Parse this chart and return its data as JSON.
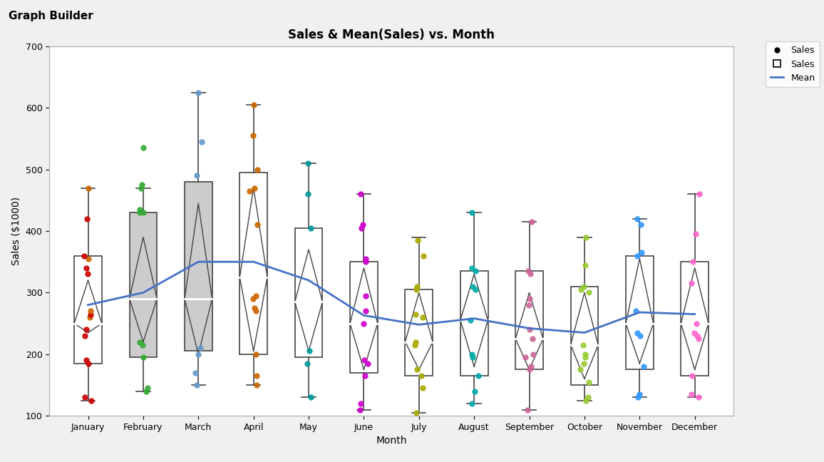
{
  "title": "Sales & Mean(Sales) vs. Month",
  "xlabel": "Month",
  "ylabel": "Sales ($1000)",
  "ylim": [
    100,
    700
  ],
  "yticks": [
    100,
    200,
    300,
    400,
    500,
    600,
    700
  ],
  "months": [
    "January",
    "February",
    "March",
    "April",
    "May",
    "June",
    "July",
    "August",
    "September",
    "October",
    "November",
    "December"
  ],
  "box_data": {
    "January": {
      "q1": 185,
      "median": 250,
      "q3": 360,
      "whisker_low": 125,
      "whisker_high": 470,
      "mean": 280,
      "ci_low": 235,
      "ci_high": 320
    },
    "February": {
      "q1": 195,
      "median": 290,
      "q3": 430,
      "whisker_low": 140,
      "whisker_high": 470,
      "mean": 300,
      "ci_low": 220,
      "ci_high": 390
    },
    "March": {
      "q1": 205,
      "median": 290,
      "q3": 480,
      "whisker_low": 150,
      "whisker_high": 625,
      "mean": 350,
      "ci_low": 200,
      "ci_high": 445
    },
    "April": {
      "q1": 200,
      "median": 325,
      "q3": 495,
      "whisker_low": 150,
      "whisker_high": 605,
      "mean": 350,
      "ci_low": 205,
      "ci_high": 470
    },
    "May": {
      "q1": 195,
      "median": 285,
      "q3": 405,
      "whisker_low": 130,
      "whisker_high": 510,
      "mean": 320,
      "ci_low": 205,
      "ci_high": 370
    },
    "June": {
      "q1": 170,
      "median": 250,
      "q3": 350,
      "whisker_low": 110,
      "whisker_high": 460,
      "mean": 263,
      "ci_low": 175,
      "ci_high": 340
    },
    "July": {
      "q1": 165,
      "median": 220,
      "q3": 305,
      "whisker_low": 105,
      "whisker_high": 390,
      "mean": 248,
      "ci_low": 175,
      "ci_high": 300
    },
    "August": {
      "q1": 165,
      "median": 255,
      "q3": 335,
      "whisker_low": 120,
      "whisker_high": 430,
      "mean": 258,
      "ci_low": 180,
      "ci_high": 330
    },
    "September": {
      "q1": 175,
      "median": 225,
      "q3": 335,
      "whisker_low": 110,
      "whisker_high": 415,
      "mean": 242,
      "ci_low": 175,
      "ci_high": 300
    },
    "October": {
      "q1": 150,
      "median": 215,
      "q3": 310,
      "whisker_low": 125,
      "whisker_high": 390,
      "mean": 235,
      "ci_low": 160,
      "ci_high": 300
    },
    "November": {
      "q1": 175,
      "median": 250,
      "q3": 360,
      "whisker_low": 130,
      "whisker_high": 420,
      "mean": 268,
      "ci_low": 185,
      "ci_high": 355
    },
    "December": {
      "q1": 165,
      "median": 250,
      "q3": 350,
      "whisker_low": 130,
      "whisker_high": 460,
      "mean": 265,
      "ci_low": 175,
      "ci_high": 340
    }
  },
  "scatter_data": {
    "January": [
      [
        125,
        "#cc0000"
      ],
      [
        130,
        "#cc0000"
      ],
      [
        185,
        "#cc0000"
      ],
      [
        190,
        "#cc0000"
      ],
      [
        230,
        "#cc0000"
      ],
      [
        240,
        "#cc0000"
      ],
      [
        260,
        "#cc6600"
      ],
      [
        265,
        "#cc0000"
      ],
      [
        270,
        "#cc6600"
      ],
      [
        330,
        "#cc0000"
      ],
      [
        340,
        "#cc0000"
      ],
      [
        355,
        "#cc6600"
      ],
      [
        360,
        "#cc0000"
      ],
      [
        420,
        "#cc0000"
      ],
      [
        470,
        "#cc6600"
      ]
    ],
    "February": [
      [
        140,
        "#33aa33"
      ],
      [
        145,
        "#33aa33"
      ],
      [
        195,
        "#33aa33"
      ],
      [
        215,
        "#33aa33"
      ],
      [
        220,
        "#33aa33"
      ],
      [
        430,
        "#33aa33"
      ],
      [
        430,
        "#33aa33"
      ],
      [
        435,
        "#33aa33"
      ],
      [
        470,
        "#33aa33"
      ],
      [
        475,
        "#33aa33"
      ],
      [
        535,
        "#33aa33"
      ]
    ],
    "March": [
      [
        150,
        "#6699cc"
      ],
      [
        170,
        "#6699cc"
      ],
      [
        200,
        "#6699cc"
      ],
      [
        210,
        "#6699cc"
      ],
      [
        490,
        "#6699cc"
      ],
      [
        545,
        "#6699cc"
      ],
      [
        625,
        "#6699cc"
      ]
    ],
    "April": [
      [
        150,
        "#cc6600"
      ],
      [
        165,
        "#cc6600"
      ],
      [
        200,
        "#cc6600"
      ],
      [
        270,
        "#cc6600"
      ],
      [
        275,
        "#cc6600"
      ],
      [
        290,
        "#cc6600"
      ],
      [
        295,
        "#cc6600"
      ],
      [
        410,
        "#cc6600"
      ],
      [
        465,
        "#cc6600"
      ],
      [
        470,
        "#cc6600"
      ],
      [
        500,
        "#cc6600"
      ],
      [
        555,
        "#cc6600"
      ],
      [
        605,
        "#cc6600"
      ]
    ],
    "May": [
      [
        130,
        "#009999"
      ],
      [
        185,
        "#009999"
      ],
      [
        205,
        "#009999"
      ],
      [
        510,
        "#009999"
      ],
      [
        460,
        "#009999"
      ],
      [
        405,
        "#009999"
      ]
    ],
    "June": [
      [
        110,
        "#cc00cc"
      ],
      [
        120,
        "#cc00cc"
      ],
      [
        165,
        "#cc00cc"
      ],
      [
        185,
        "#cc00cc"
      ],
      [
        190,
        "#cc00cc"
      ],
      [
        250,
        "#cc00cc"
      ],
      [
        270,
        "#cc00cc"
      ],
      [
        295,
        "#cc00cc"
      ],
      [
        350,
        "#cc00cc"
      ],
      [
        355,
        "#cc00cc"
      ],
      [
        405,
        "#cc00cc"
      ],
      [
        410,
        "#cc00cc"
      ],
      [
        460,
        "#cc00cc"
      ]
    ],
    "July": [
      [
        105,
        "#aaaa00"
      ],
      [
        145,
        "#aaaa00"
      ],
      [
        165,
        "#aaaa00"
      ],
      [
        175,
        "#aaaa00"
      ],
      [
        215,
        "#aaaa00"
      ],
      [
        220,
        "#aaaa00"
      ],
      [
        260,
        "#aaaa00"
      ],
      [
        265,
        "#aaaa00"
      ],
      [
        305,
        "#aaaa00"
      ],
      [
        310,
        "#aaaa00"
      ],
      [
        360,
        "#aaaa00"
      ],
      [
        385,
        "#aaaa00"
      ]
    ],
    "August": [
      [
        120,
        "#00aaaa"
      ],
      [
        140,
        "#00aaaa"
      ],
      [
        165,
        "#00aaaa"
      ],
      [
        195,
        "#00aaaa"
      ],
      [
        200,
        "#00aaaa"
      ],
      [
        255,
        "#00aaaa"
      ],
      [
        305,
        "#00aaaa"
      ],
      [
        310,
        "#00aaaa"
      ],
      [
        335,
        "#00aaaa"
      ],
      [
        340,
        "#00aaaa"
      ],
      [
        430,
        "#00aaaa"
      ]
    ],
    "September": [
      [
        110,
        "#cc6699"
      ],
      [
        175,
        "#cc6699"
      ],
      [
        180,
        "#cc6699"
      ],
      [
        195,
        "#cc6699"
      ],
      [
        200,
        "#cc6699"
      ],
      [
        225,
        "#cc6699"
      ],
      [
        240,
        "#cc6699"
      ],
      [
        280,
        "#cc6699"
      ],
      [
        290,
        "#cc6699"
      ],
      [
        330,
        "#cc6699"
      ],
      [
        335,
        "#cc6699"
      ],
      [
        415,
        "#cc6699"
      ]
    ],
    "October": [
      [
        125,
        "#99cc33"
      ],
      [
        130,
        "#99cc33"
      ],
      [
        155,
        "#99cc33"
      ],
      [
        175,
        "#99cc33"
      ],
      [
        185,
        "#99cc33"
      ],
      [
        195,
        "#99cc33"
      ],
      [
        200,
        "#99cc33"
      ],
      [
        215,
        "#99cc33"
      ],
      [
        300,
        "#99cc33"
      ],
      [
        305,
        "#99cc33"
      ],
      [
        310,
        "#99cc33"
      ],
      [
        345,
        "#99cc33"
      ],
      [
        390,
        "#99cc33"
      ]
    ],
    "November": [
      [
        130,
        "#3399ff"
      ],
      [
        135,
        "#3399ff"
      ],
      [
        180,
        "#3399ff"
      ],
      [
        230,
        "#3399ff"
      ],
      [
        235,
        "#3399ff"
      ],
      [
        270,
        "#3399ff"
      ],
      [
        360,
        "#3399ff"
      ],
      [
        365,
        "#3399ff"
      ],
      [
        410,
        "#3399ff"
      ],
      [
        420,
        "#3399ff"
      ]
    ],
    "December": [
      [
        130,
        "#ff66cc"
      ],
      [
        135,
        "#ff66cc"
      ],
      [
        165,
        "#ff66cc"
      ],
      [
        225,
        "#ff66cc"
      ],
      [
        230,
        "#ff66cc"
      ],
      [
        235,
        "#ff66cc"
      ],
      [
        250,
        "#ff66cc"
      ],
      [
        315,
        "#ff66cc"
      ],
      [
        350,
        "#ff66cc"
      ],
      [
        395,
        "#ff66cc"
      ],
      [
        460,
        "#ff66cc"
      ]
    ]
  },
  "gray_months": [
    "February",
    "March"
  ],
  "mean_line_color": "#4472c4",
  "box_width": 0.5,
  "background_color": "#f0f0f0",
  "plot_bg": "#ffffff",
  "header_color": "#d0d8e8"
}
